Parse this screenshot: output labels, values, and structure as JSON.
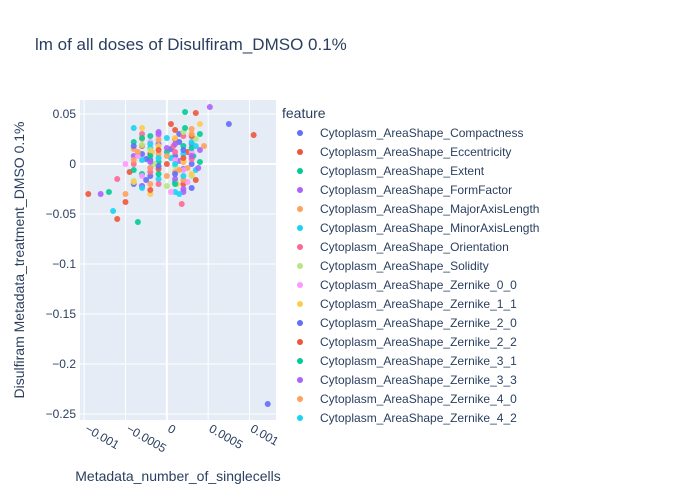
{
  "chart_data": {
    "type": "scatter",
    "title": "lm of all doses of Disulfiram_DMSO 0.1%",
    "xlabel": "Metadata_number_of_singlecells",
    "ylabel": "Disulfiram Metadata_treatment_DMSO 0.1%",
    "xlim": [
      -0.00105,
      0.00132
    ],
    "ylim": [
      -0.256,
      0.064
    ],
    "x_ticks": [
      -0.001,
      -0.0005,
      0,
      0.0005,
      0.001
    ],
    "x_tick_labels": [
      "−0.001",
      "−0.0005",
      "0",
      "0.0005",
      "0.001"
    ],
    "y_ticks": [
      0.05,
      0,
      -0.05,
      -0.1,
      -0.15,
      -0.2,
      -0.25
    ],
    "y_tick_labels": [
      "0.05",
      "0",
      "−0.05",
      "−0.1",
      "−0.15",
      "−0.2",
      "−0.25"
    ],
    "grid": true,
    "legend_title": "feature",
    "legend_position": "right",
    "series": [
      {
        "name": "Cytoplasm_AreaShape_Compactness",
        "color": "#636efa",
        "points": [
          [
            0.00075,
            0.04
          ],
          [
            0.00122,
            -0.24
          ],
          [
            -0.0003,
            0.01
          ],
          [
            0.0002,
            -0.005
          ],
          [
            -0.0001,
            0.02
          ],
          [
            0.0001,
            0.008
          ],
          [
            -0.0002,
            -0.012
          ],
          [
            5e-05,
            0.015
          ],
          [
            0.0003,
            0.0
          ],
          [
            -0.0004,
            -0.02
          ],
          [
            0.00015,
            0.03
          ],
          [
            -0.00025,
            0.005
          ]
        ]
      },
      {
        "name": "Cytoplasm_AreaShape_Eccentricity",
        "color": "#EF553B",
        "points": [
          [
            0.00105,
            0.029
          ],
          [
            -0.00095,
            -0.03
          ],
          [
            -0.0006,
            -0.055
          ],
          [
            0.00035,
            0.051
          ],
          [
            -0.0002,
            0.01
          ],
          [
            0.0001,
            0.025
          ],
          [
            -0.0005,
            -0.038
          ],
          [
            0.0002,
            -0.02
          ],
          [
            -0.0001,
            -0.005
          ],
          [
            0.00025,
            0.012
          ],
          [
            -0.0003,
            0.018
          ],
          [
            5e-05,
            0.04
          ]
        ]
      },
      {
        "name": "Cytoplasm_AreaShape_Extent",
        "color": "#00cc96",
        "points": [
          [
            0.00022,
            0.052
          ],
          [
            -0.00035,
            -0.058
          ],
          [
            -0.0007,
            -0.028
          ],
          [
            0.0004,
            0.03
          ],
          [
            -0.0001,
            0.002
          ],
          [
            0.0002,
            0.018
          ],
          [
            -0.0003,
            -0.01
          ],
          [
            0.0001,
            -0.018
          ],
          [
            -0.0004,
            0.022
          ],
          [
            0.00032,
            0.008
          ],
          [
            0.0,
            0.012
          ],
          [
            -0.0002,
            0.028
          ]
        ]
      },
      {
        "name": "Cytoplasm_AreaShape_FormFactor",
        "color": "#ab63fa",
        "points": [
          [
            0.00052,
            0.057
          ],
          [
            -0.0008,
            -0.03
          ],
          [
            0.0003,
            0.02
          ],
          [
            -0.0002,
            -0.004
          ],
          [
            0.0001,
            -0.015
          ],
          [
            -0.0004,
            0.008
          ],
          [
            0.0004,
            0.014
          ],
          [
            -0.0001,
            0.032
          ],
          [
            0.0002,
            -0.025
          ],
          [
            -0.0003,
            -0.022
          ],
          [
            0.00015,
            0.003
          ]
        ]
      },
      {
        "name": "Cytoplasm_AreaShape_MajorAxisLength",
        "color": "#FFA15A",
        "points": [
          [
            -0.0003,
            0.025
          ],
          [
            0.0001,
            -0.008
          ],
          [
            -0.0005,
            -0.03
          ],
          [
            0.0003,
            0.035
          ],
          [
            -0.0001,
            0.01
          ],
          [
            0.0002,
            0.002
          ],
          [
            -0.0002,
            -0.02
          ],
          [
            0.00045,
            0.018
          ],
          [
            0.0,
            -0.012
          ],
          [
            -0.0004,
            0.015
          ],
          [
            0.00025,
            -0.004
          ]
        ]
      },
      {
        "name": "Cytoplasm_AreaShape_MinorAxisLength",
        "color": "#19d3f3",
        "points": [
          [
            -0.00065,
            -0.047
          ],
          [
            -0.0004,
            0.036
          ],
          [
            0.0002,
            0.01
          ],
          [
            -0.0001,
            -0.015
          ],
          [
            0.0003,
            0.022
          ],
          [
            -0.0003,
            0.004
          ],
          [
            0.0001,
            -0.028
          ],
          [
            -0.0002,
            0.016
          ],
          [
            0.00035,
            -0.006
          ],
          [
            5e-05,
            0.006
          ]
        ]
      },
      {
        "name": "Cytoplasm_AreaShape_Orientation",
        "color": "#FF6692",
        "points": [
          [
            -0.0006,
            -0.015
          ],
          [
            0.00018,
            -0.04
          ],
          [
            -0.0003,
            0.03
          ],
          [
            0.0001,
            0.012
          ],
          [
            -0.0001,
            -0.02
          ],
          [
            0.0003,
            0.005
          ],
          [
            -0.0004,
            0.0
          ],
          [
            0.0002,
            0.028
          ],
          [
            -0.0002,
            -0.008
          ],
          [
            8e-05,
            0.018
          ]
        ]
      },
      {
        "name": "Cytoplasm_AreaShape_Solidity",
        "color": "#B6E880",
        "points": [
          [
            -0.0004,
            -0.017
          ],
          [
            0.0002,
            0.032
          ],
          [
            -0.0001,
            0.006
          ],
          [
            0.0003,
            -0.012
          ],
          [
            -0.0003,
            0.019
          ],
          [
            0.0001,
            -0.002
          ],
          [
            -0.0002,
            0.014
          ],
          [
            0.00035,
            0.025
          ],
          [
            0.0,
            -0.022
          ],
          [
            -0.00015,
            0.0
          ]
        ]
      },
      {
        "name": "Cytoplasm_AreaShape_Zernike_0_0",
        "color": "#FF97FF",
        "points": [
          [
            -0.0005,
            0.0
          ],
          [
            0.00025,
            -0.018
          ],
          [
            -0.0002,
            0.022
          ],
          [
            0.0001,
            0.004
          ],
          [
            -0.0003,
            -0.012
          ],
          [
            0.0003,
            0.012
          ],
          [
            -0.0001,
            0.028
          ],
          [
            0.0002,
            -0.006
          ],
          [
            -0.00035,
            0.008
          ],
          [
            5e-05,
            -0.028
          ]
        ]
      },
      {
        "name": "Cytoplasm_AreaShape_Zernike_1_1",
        "color": "#FECB52",
        "points": [
          [
            0.0004,
            0.04
          ],
          [
            -0.0003,
            0.036
          ],
          [
            0.00012,
            -0.02
          ],
          [
            -0.00018,
            0.012
          ],
          [
            0.0002,
            0.003
          ],
          [
            -0.0004,
            -0.018
          ],
          [
            0.0003,
            -0.01
          ],
          [
            -0.0001,
            0.018
          ],
          [
            0.0001,
            0.026
          ],
          [
            -0.0002,
            -0.03
          ]
        ]
      },
      {
        "name": "Cytoplasm_AreaShape_Zernike_2_0",
        "color": "#636efa",
        "points": [
          [
            -0.0002,
            0.004
          ],
          [
            0.0002,
            0.014
          ],
          [
            -0.0004,
            0.018
          ],
          [
            0.0001,
            -0.01
          ],
          [
            0.0003,
            -0.024
          ],
          [
            -0.0001,
            -0.002
          ],
          [
            0.00015,
            0.022
          ],
          [
            -0.00025,
            -0.016
          ]
        ]
      },
      {
        "name": "Cytoplasm_AreaShape_Zernike_2_2",
        "color": "#EF553B",
        "points": [
          [
            0.0003,
            0.028
          ],
          [
            -0.00045,
            -0.008
          ],
          [
            0.0001,
            0.034
          ],
          [
            -0.0002,
            -0.026
          ],
          [
            0.0002,
            0.006
          ],
          [
            -0.0001,
            0.014
          ],
          [
            0.00035,
            -0.016
          ],
          [
            0.0,
            0.0
          ]
        ]
      },
      {
        "name": "Cytoplasm_AreaShape_Zernike_3_1",
        "color": "#00cc96",
        "points": [
          [
            -0.0001,
            -0.01
          ],
          [
            0.0003,
            0.016
          ],
          [
            -0.0003,
            0.026
          ],
          [
            0.0001,
            -0.02
          ],
          [
            0.00022,
            0.036
          ],
          [
            -0.0002,
            0.008
          ],
          [
            0.0004,
            0.002
          ],
          [
            -0.0004,
            -0.006
          ]
        ]
      },
      {
        "name": "Cytoplasm_AreaShape_Zernike_3_3",
        "color": "#ab63fa",
        "points": [
          [
            0.0002,
            -0.028
          ],
          [
            -0.0002,
            0.002
          ],
          [
            0.0001,
            0.02
          ],
          [
            -0.0003,
            -0.022
          ],
          [
            0.0003,
            0.008
          ],
          [
            -0.0001,
            0.03
          ],
          [
            0.00038,
            -0.004
          ],
          [
            0.0,
            0.016
          ]
        ]
      },
      {
        "name": "Cytoplasm_AreaShape_Zernike_4_0",
        "color": "#FFA15A",
        "points": [
          [
            -0.00035,
            0.012
          ],
          [
            0.00015,
            -0.006
          ],
          [
            -0.0001,
            0.024
          ],
          [
            0.0002,
            -0.016
          ],
          [
            -0.0002,
            -0.004
          ],
          [
            0.0003,
            0.03
          ],
          [
            0.0,
            0.008
          ],
          [
            -0.0004,
            0.004
          ]
        ]
      },
      {
        "name": "Cytoplasm_AreaShape_Zernike_4_2",
        "color": "#19d3f3",
        "points": [
          [
            0.0001,
            0.0
          ],
          [
            -0.0002,
            0.02
          ],
          [
            0.0002,
            -0.012
          ],
          [
            -0.0003,
            -0.024
          ],
          [
            0.00035,
            0.018
          ],
          [
            -0.0001,
            0.006
          ],
          [
            0.00015,
            -0.03
          ],
          [
            0.0,
            0.026
          ]
        ]
      }
    ]
  }
}
